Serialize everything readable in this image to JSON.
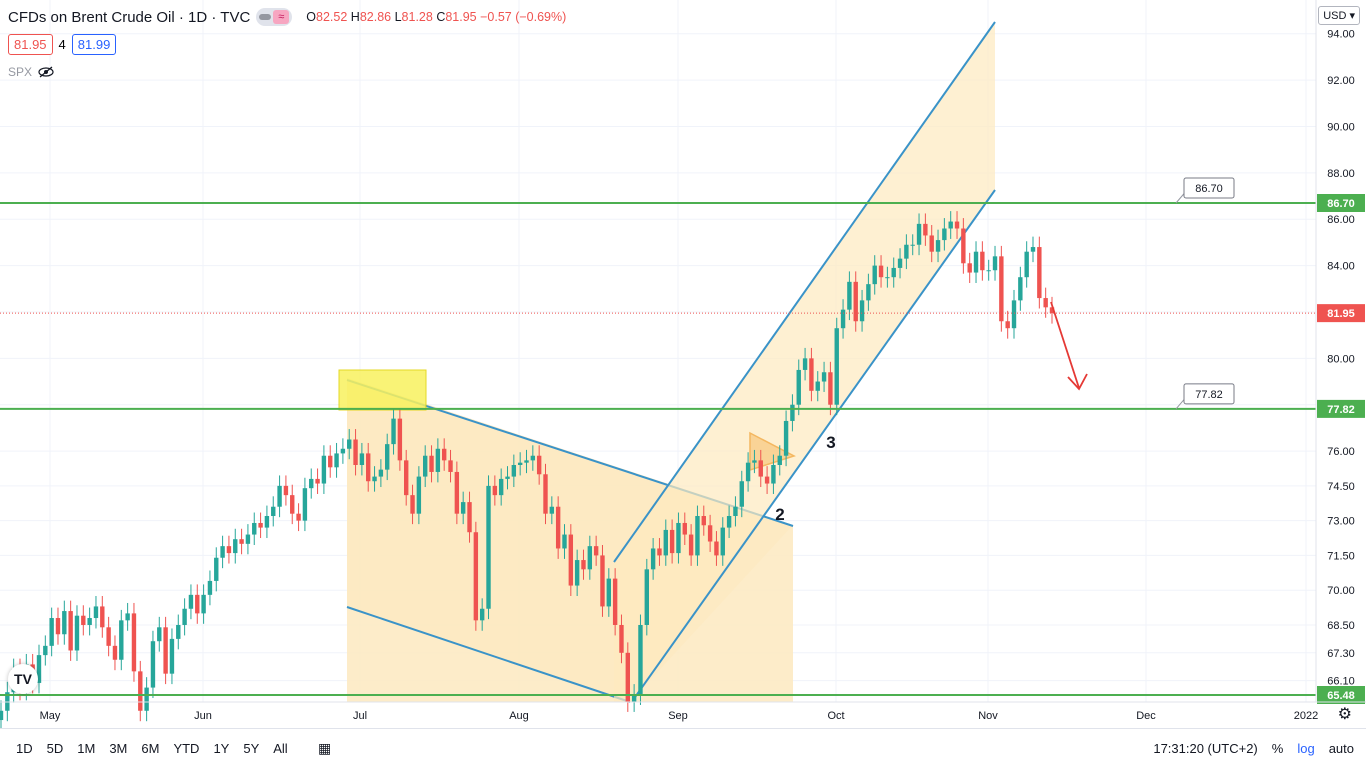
{
  "header": {
    "title": "CFDs on Brent Crude Oil · 1D · TVC",
    "ohlc": {
      "o_label": "O",
      "o": "82.52",
      "h_label": "H",
      "h": "82.86",
      "l_label": "L",
      "l": "81.28",
      "c_label": "C",
      "c": "81.95",
      "chg": "−0.57 (−0.69%)"
    },
    "bid": "81.95",
    "spread": "4",
    "ask": "81.99",
    "overlay": "SPX"
  },
  "currency": "USD",
  "bottom": {
    "ranges": [
      "1D",
      "5D",
      "1M",
      "3M",
      "6M",
      "YTD",
      "1Y",
      "5Y",
      "All"
    ],
    "clock": "17:31:20 (UTC+2)",
    "pct": "%",
    "log": "log",
    "auto": "auto"
  },
  "colors": {
    "up": "#26a69a",
    "down": "#ef5350",
    "line": "#4caf50",
    "channel": "#3a93c8",
    "fill": "#fde9bf"
  },
  "chart_data": {
    "type": "candlestick",
    "title": "CFDs on Brent Crude Oil",
    "x_labels": [
      "May",
      "Jun",
      "Jul",
      "Aug",
      "Sep",
      "Oct",
      "Nov",
      "Dec",
      "2022"
    ],
    "y_ticks": [
      "94.00",
      "92.00",
      "90.00",
      "88.00",
      "86.00",
      "84.00",
      "82.00",
      "80.00",
      "78.00",
      "76.00",
      "74.50",
      "73.00",
      "71.50",
      "70.00",
      "68.50",
      "67.30",
      "66.10"
    ],
    "ylim": [
      64.8,
      96.2
    ],
    "levels": [
      {
        "label": "86.70",
        "value": 86.7
      },
      {
        "label": "77.82",
        "value": 77.82
      },
      {
        "label": "65.48",
        "value": 65.48
      }
    ],
    "last_price": "81.95",
    "annotations": [
      "2",
      "3"
    ],
    "closes": [
      64.8,
      65.6,
      66.6,
      65.7,
      66.8,
      66.0,
      67.2,
      67.6,
      68.8,
      68.1,
      69.1,
      67.4,
      68.9,
      68.5,
      68.8,
      69.3,
      68.4,
      67.6,
      67.0,
      68.7,
      69.0,
      66.5,
      64.8,
      65.8,
      67.8,
      68.4,
      66.4,
      67.9,
      68.5,
      69.2,
      69.8,
      69.0,
      69.8,
      70.4,
      71.4,
      71.9,
      71.6,
      72.2,
      72.0,
      72.4,
      72.9,
      72.7,
      73.2,
      73.6,
      74.5,
      74.1,
      73.3,
      73.0,
      74.4,
      74.8,
      74.6,
      75.8,
      75.3,
      75.9,
      76.1,
      76.5,
      75.4,
      75.9,
      74.7,
      74.9,
      75.2,
      76.3,
      77.4,
      75.6,
      74.1,
      73.3,
      74.9,
      75.8,
      75.1,
      76.1,
      75.6,
      75.1,
      73.3,
      73.8,
      72.5,
      68.7,
      69.2,
      74.5,
      74.1,
      74.8,
      74.9,
      75.4,
      75.5,
      75.6,
      75.8,
      75.0,
      73.3,
      73.6,
      71.8,
      72.4,
      70.2,
      71.3,
      70.9,
      71.9,
      71.5,
      69.3,
      70.5,
      68.5,
      67.3,
      65.2,
      65.5,
      68.5,
      70.9,
      71.8,
      71.5,
      72.6,
      71.6,
      72.9,
      72.4,
      71.5,
      73.2,
      72.8,
      72.1,
      71.5,
      72.7,
      73.2,
      73.6,
      74.7,
      75.5,
      75.6,
      74.9,
      74.6,
      75.4,
      75.8,
      77.3,
      78.0,
      79.5,
      80.0,
      78.6,
      79.0,
      79.4,
      78.0,
      81.3,
      82.1,
      83.3,
      81.6,
      82.5,
      83.2,
      84.0,
      83.5,
      83.5,
      83.9,
      84.3,
      84.9,
      84.9,
      85.8,
      85.3,
      84.6,
      85.1,
      85.6,
      85.9,
      85.6,
      84.1,
      83.7,
      84.6,
      83.8,
      83.8,
      84.4,
      81.6,
      81.3,
      82.5,
      83.5,
      84.6,
      84.8,
      82.6,
      82.2,
      81.95
    ],
    "candle_x_start": 1,
    "candle_x_end": 1052
  }
}
